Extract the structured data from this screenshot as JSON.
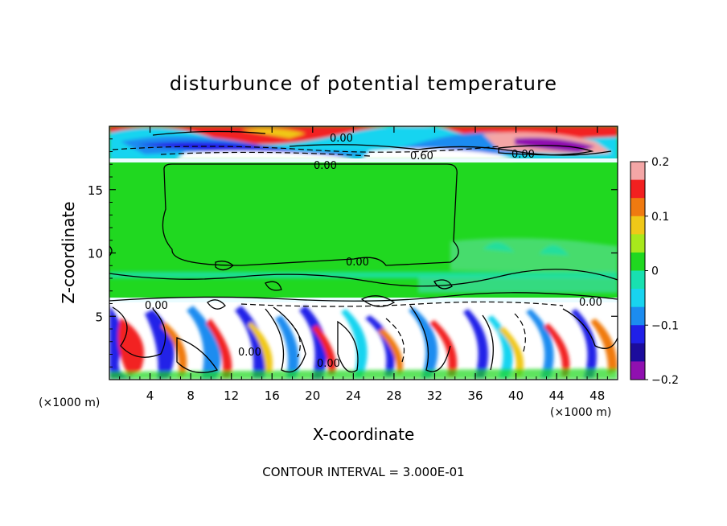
{
  "chart_data": {
    "type": "heatmap",
    "title": "disturbunce of potential temperature",
    "xlabel": "X-coordinate",
    "ylabel": "Z-coordinate",
    "x_unit_left": "(×1000 m)",
    "x_unit_right": "(×1000 m)",
    "xlim": [
      0,
      50
    ],
    "ylim": [
      0,
      20
    ],
    "x_ticks": [
      4,
      8,
      12,
      16,
      20,
      24,
      28,
      32,
      36,
      40,
      44,
      48
    ],
    "y_ticks": [
      5,
      10,
      15
    ],
    "colorbar": {
      "min": -0.2,
      "max": 0.2,
      "ticks": [
        0.2,
        0.1,
        0,
        -0.1,
        -0.2
      ],
      "tick_labels": [
        "0.2",
        "0.1",
        "0",
        "−0.1",
        "−0.2"
      ],
      "colors": [
        "#f4a6a6",
        "#f22020",
        "#f07a10",
        "#f0c818",
        "#a8e81c",
        "#20d820",
        "#18e0b0",
        "#18d4f0",
        "#1c8cf0",
        "#2020e8",
        "#1c0c9c",
        "#9010b0"
      ]
    },
    "contour_labels": [
      "0.00",
      "0.00",
      "0.60",
      "0.00",
      "0.00",
      "0.00",
      "0.00",
      "0.00",
      "0.00"
    ],
    "contour_interval_text": "CONTOUR INTERVAL = 3.000E-01"
  }
}
